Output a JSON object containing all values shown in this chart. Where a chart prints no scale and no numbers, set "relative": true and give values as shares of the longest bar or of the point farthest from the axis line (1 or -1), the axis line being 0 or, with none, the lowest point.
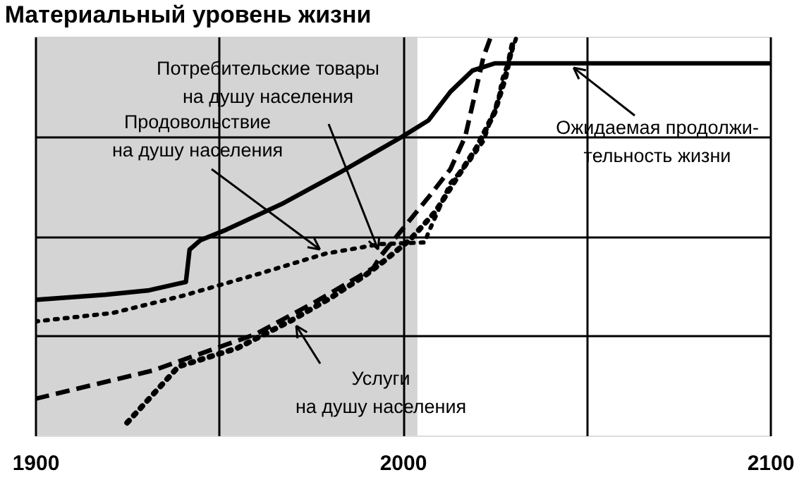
{
  "chart_data": {
    "type": "line",
    "title": "Материальный уровень жизни",
    "relative": true,
    "xlim": [
      1900,
      2100
    ],
    "xticks": [
      1900,
      {
        "value": 1950,
        "label": null
      },
      2000,
      {
        "value": 2050,
        "label": null
      },
      2100
    ],
    "grid": true,
    "bands": [
      {
        "axis": "x",
        "from": 1900,
        "to": 2004,
        "color": "#d4d4d4"
      }
    ],
    "annotations": [
      {
        "text": "Ожидаемая продолжи-\nтельность жизни",
        "x": 2045,
        "y": 0.933
      },
      {
        "text": "Потребительские товары\nна душу населения",
        "x": 1994,
        "y": 0.45
      },
      {
        "text": "Продовольствие\nна душу населения",
        "x": 1979,
        "y": 0.456
      },
      {
        "text": "Услуги\nна душу населения",
        "x": 1970,
        "y": 0.29
      }
    ],
    "series": [
      {
        "color": "#000000",
        "line_style": "solid",
        "x": [
          1900,
          1919,
          1931,
          1941,
          1942,
          1945,
          1952,
          1967,
          1983,
          2000,
          2007,
          2013,
          2019,
          2025,
          2045,
          2100
        ],
        "values": [
          0.34,
          0.353,
          0.364,
          0.385,
          0.466,
          0.49,
          0.516,
          0.58,
          0.66,
          0.75,
          0.79,
          0.862,
          0.915,
          0.933,
          0.933,
          0.933
        ]
      },
      {
        "color": "#000000",
        "line_style": "dashed",
        "x": [
          1900,
          1932,
          1960,
          1977,
          1992,
          1994,
          2007,
          2013,
          2017,
          2020,
          2022,
          2024
        ],
        "values": [
          0.092,
          0.163,
          0.254,
          0.339,
          0.42,
          0.45,
          0.597,
          0.668,
          0.749,
          0.869,
          0.95,
          1.0
        ]
      },
      {
        "color": "#000000",
        "line_style": "dotted",
        "x": [
          1900,
          1921,
          1940,
          1960,
          1979,
          1994,
          2006,
          2007,
          2013,
          2018,
          2022,
          2024,
          2026,
          2027,
          2029,
          2031
        ],
        "values": [
          0.286,
          0.307,
          0.35,
          0.403,
          0.456,
          0.48,
          0.484,
          0.509,
          0.633,
          0.686,
          0.739,
          0.792,
          0.837,
          0.89,
          0.943,
          1.0
        ]
      },
      {
        "color": "#000000",
        "line_style": "dotted",
        "x": [
          1925,
          1939,
          1955,
          1970,
          1980,
          1990,
          1995,
          2002,
          2009,
          2015,
          2020,
          2025,
          2028,
          2030
        ],
        "values": [
          0.032,
          0.173,
          0.219,
          0.29,
          0.343,
          0.403,
          0.438,
          0.491,
          0.562,
          0.65,
          0.72,
          0.81,
          0.9,
          0.986
        ]
      }
    ]
  }
}
